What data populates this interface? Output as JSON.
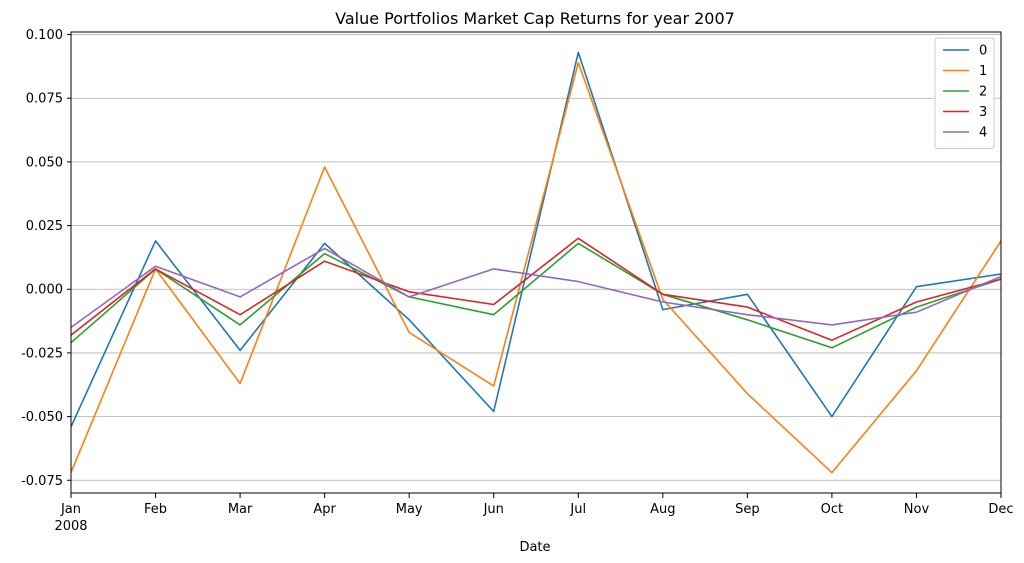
{
  "chart_data": {
    "type": "line",
    "title": "Value Portfolios Market Cap Returns for year 2007",
    "xlabel": "Date",
    "ylabel": "",
    "categories": [
      "Jan",
      "Feb",
      "Mar",
      "Apr",
      "May",
      "Jun",
      "Jul",
      "Aug",
      "Sep",
      "Oct",
      "Nov",
      "Dec"
    ],
    "year_label": "2008",
    "ylim": [
      -0.08,
      0.101
    ],
    "yticks": [
      "-0.075",
      "-0.050",
      "-0.025",
      "0.000",
      "0.025",
      "0.050",
      "0.075",
      "0.100"
    ],
    "ytick_values": [
      -0.075,
      -0.05,
      -0.025,
      0.0,
      0.025,
      0.05,
      0.075,
      0.1
    ],
    "grid": "y-major",
    "legend_position": "top-right",
    "series": [
      {
        "name": "0",
        "color": "#1f77b4",
        "values": [
          -0.054,
          0.019,
          -0.024,
          0.018,
          -0.012,
          -0.048,
          0.093,
          -0.008,
          -0.002,
          -0.05,
          0.001,
          0.006
        ]
      },
      {
        "name": "1",
        "color": "#ff7f0e",
        "values": [
          -0.072,
          0.008,
          -0.037,
          0.048,
          -0.017,
          -0.038,
          0.089,
          -0.004,
          -0.041,
          -0.072,
          -0.032,
          0.019
        ]
      },
      {
        "name": "2",
        "color": "#2ca02c",
        "values": [
          -0.021,
          0.008,
          -0.014,
          0.014,
          -0.003,
          -0.01,
          0.018,
          -0.002,
          -0.012,
          -0.023,
          -0.007,
          0.004
        ]
      },
      {
        "name": "3",
        "color": "#d62728",
        "values": [
          -0.018,
          0.008,
          -0.01,
          0.011,
          -0.001,
          -0.006,
          0.02,
          -0.002,
          -0.007,
          -0.02,
          -0.005,
          0.004
        ]
      },
      {
        "name": "4",
        "color": "#9467bd",
        "values": [
          -0.015,
          0.009,
          -0.003,
          0.016,
          -0.003,
          0.008,
          0.003,
          -0.005,
          -0.01,
          -0.014,
          -0.009,
          0.005
        ]
      }
    ]
  }
}
